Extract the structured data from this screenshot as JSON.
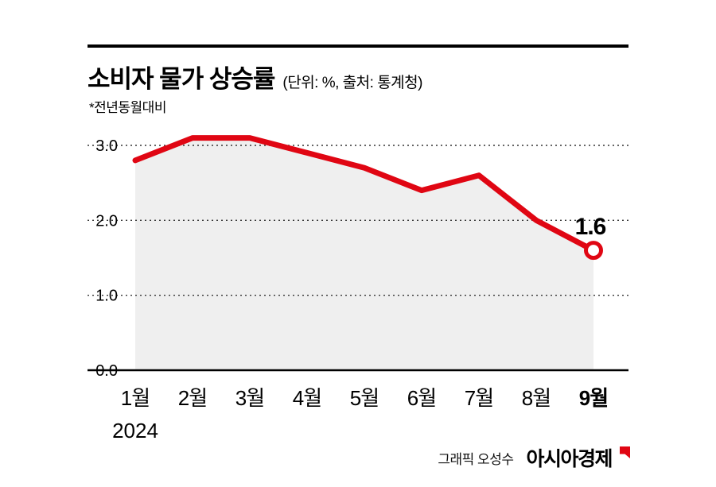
{
  "header": {
    "title": "소비자 물가 상승률",
    "unit_note": "(단위: %, 출처: 통계청)",
    "subtitle": "*전년동월대비"
  },
  "chart_data": {
    "type": "line",
    "title": "소비자 물가 상승률",
    "unit": "%",
    "source": "통계청",
    "categories": [
      "1월",
      "2월",
      "3월",
      "4월",
      "5월",
      "6월",
      "7월",
      "8월",
      "9월"
    ],
    "values": [
      2.8,
      3.1,
      3.1,
      2.9,
      2.7,
      2.4,
      2.6,
      2.0,
      1.6
    ],
    "year_label": "2024",
    "end_label": "1.6",
    "yticks": [
      0.0,
      1.0,
      2.0,
      3.0
    ],
    "ytick_labels": [
      "0.0",
      "1.0",
      "2.0",
      "3.0"
    ],
    "ylim": [
      0,
      3.0
    ],
    "grid": "horizontal-dotted",
    "legend": "none",
    "line_color": "#e00613",
    "fill_color": "#efefef"
  },
  "footer": {
    "credit": "그래픽 오성수",
    "brand": "아시아경제"
  }
}
